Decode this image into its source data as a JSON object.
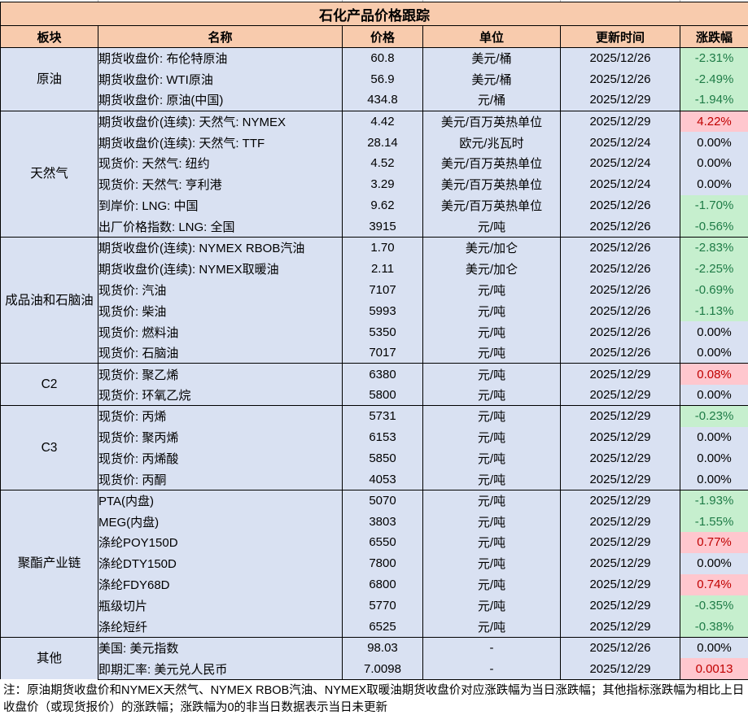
{
  "title": "石化产品价格跟踪",
  "columns": [
    "板块",
    "名称",
    "价格",
    "单位",
    "更新时间",
    "涨跌幅"
  ],
  "colors": {
    "header_bg": "#F8CBAD",
    "body_bg": "#D9E1F2",
    "green_bg": "#C6EFCE",
    "green_text": "#1E7B46",
    "red_bg": "#FFC7CE",
    "red_text": "#C00000"
  },
  "sections": [
    {
      "label": "原油",
      "rows": [
        {
          "name": "期货收盘价: 布伦特原油",
          "price": "60.8",
          "unit": "美元/桶",
          "date": "2025/12/26",
          "change": "-2.31%",
          "change_style": "green"
        },
        {
          "name": "期货收盘价: WTI原油",
          "price": "56.9",
          "unit": "美元/桶",
          "date": "2025/12/26",
          "change": "-2.49%",
          "change_style": "green"
        },
        {
          "name": "期货收盘价: 原油(中国)",
          "price": "434.8",
          "unit": "元/桶",
          "date": "2025/12/29",
          "change": "-1.94%",
          "change_style": "green"
        }
      ]
    },
    {
      "label": "天然气",
      "rows": [
        {
          "name": "期货收盘价(连续): 天然气: NYMEX",
          "price": "4.42",
          "unit": "美元/百万英热单位",
          "date": "2025/12/29",
          "change": "4.22%",
          "change_style": "red"
        },
        {
          "name": "期货收盘价(连续): 天然气: TTF",
          "price": "28.14",
          "unit": "欧元/兆瓦时",
          "date": "2025/12/24",
          "change": "0.00%",
          "change_style": "none"
        },
        {
          "name": "现货价: 天然气: 纽约",
          "price": "4.52",
          "unit": "美元/百万英热单位",
          "date": "2025/12/24",
          "change": "0.00%",
          "change_style": "none"
        },
        {
          "name": "现货价: 天然气: 亨利港",
          "price": "3.29",
          "unit": "美元/百万英热单位",
          "date": "2025/12/24",
          "change": "0.00%",
          "change_style": "none"
        },
        {
          "name": "到岸价: LNG: 中国",
          "price": "9.62",
          "unit": "美元/百万英热单位",
          "date": "2025/12/26",
          "change": "-1.70%",
          "change_style": "green"
        },
        {
          "name": "出厂价格指数: LNG: 全国",
          "price": "3915",
          "unit": "元/吨",
          "date": "2025/12/26",
          "change": "-0.56%",
          "change_style": "green"
        }
      ]
    },
    {
      "label": "成品油和石脑油",
      "rows": [
        {
          "name": "期货收盘价(连续): NYMEX RBOB汽油",
          "price": "1.70",
          "unit": "美元/加仑",
          "date": "2025/12/26",
          "change": "-2.83%",
          "change_style": "green"
        },
        {
          "name": "期货收盘价(连续): NYMEX取暖油",
          "price": "2.11",
          "unit": "美元/加仑",
          "date": "2025/12/26",
          "change": "-2.25%",
          "change_style": "green"
        },
        {
          "name": "现货价: 汽油",
          "price": "7107",
          "unit": "元/吨",
          "date": "2025/12/26",
          "change": "-0.69%",
          "change_style": "green"
        },
        {
          "name": "现货价: 柴油",
          "price": "5993",
          "unit": "元/吨",
          "date": "2025/12/26",
          "change": "-1.13%",
          "change_style": "green"
        },
        {
          "name": "现货价: 燃料油",
          "price": "5350",
          "unit": "元/吨",
          "date": "2025/12/26",
          "change": "0.00%",
          "change_style": "none"
        },
        {
          "name": "现货价: 石脑油",
          "price": "7017",
          "unit": "元/吨",
          "date": "2025/12/26",
          "change": "0.00%",
          "change_style": "none"
        }
      ]
    },
    {
      "label": "C2",
      "rows": [
        {
          "name": "现货价: 聚乙烯",
          "price": "6380",
          "unit": "元/吨",
          "date": "2025/12/29",
          "change": "0.08%",
          "change_style": "red"
        },
        {
          "name": "现货价: 环氧乙烷",
          "price": "5800",
          "unit": "元/吨",
          "date": "2025/12/29",
          "change": "0.00%",
          "change_style": "none"
        }
      ]
    },
    {
      "label": "C3",
      "rows": [
        {
          "name": "现货价: 丙烯",
          "price": "5731",
          "unit": "元/吨",
          "date": "2025/12/29",
          "change": "-0.23%",
          "change_style": "green"
        },
        {
          "name": "现货价: 聚丙烯",
          "price": "6153",
          "unit": "元/吨",
          "date": "2025/12/29",
          "change": "0.00%",
          "change_style": "none"
        },
        {
          "name": "现货价: 丙烯酸",
          "price": "5850",
          "unit": "元/吨",
          "date": "2025/12/29",
          "change": "0.00%",
          "change_style": "none"
        },
        {
          "name": "现货价: 丙酮",
          "price": "4053",
          "unit": "元/吨",
          "date": "2025/12/29",
          "change": "0.00%",
          "change_style": "none"
        }
      ]
    },
    {
      "label": "聚酯产业链",
      "rows": [
        {
          "name": "PTA(内盘)",
          "price": "5070",
          "unit": "元/吨",
          "date": "2025/12/29",
          "change": "-1.93%",
          "change_style": "green"
        },
        {
          "name": "MEG(内盘)",
          "price": "3803",
          "unit": "元/吨",
          "date": "2025/12/29",
          "change": "-1.55%",
          "change_style": "green"
        },
        {
          "name": "涤纶POY150D",
          "price": "6550",
          "unit": "元/吨",
          "date": "2025/12/29",
          "change": "0.77%",
          "change_style": "red"
        },
        {
          "name": "涤纶DTY150D",
          "price": "7800",
          "unit": "元/吨",
          "date": "2025/12/29",
          "change": "0.00%",
          "change_style": "none"
        },
        {
          "name": "涤纶FDY68D",
          "price": "6800",
          "unit": "元/吨",
          "date": "2025/12/29",
          "change": "0.74%",
          "change_style": "red"
        },
        {
          "name": "瓶级切片",
          "price": "5770",
          "unit": "元/吨",
          "date": "2025/12/29",
          "change": "-0.35%",
          "change_style": "green"
        },
        {
          "name": "涤纶短纤",
          "price": "6525",
          "unit": "元/吨",
          "date": "2025/12/29",
          "change": "-0.38%",
          "change_style": "green"
        }
      ]
    },
    {
      "label": "其他",
      "rows": [
        {
          "name": "美国: 美元指数",
          "price": "98.03",
          "unit": "-",
          "date": "2025/12/26",
          "change": "0.00%",
          "change_style": "none"
        },
        {
          "name": "即期汇率: 美元兑人民币",
          "price": "7.0098",
          "unit": "-",
          "date": "2025/12/29",
          "change": "0.0013",
          "change_style": "red"
        }
      ]
    }
  ],
  "footnote": "注：原油期货收盘价和NYMEX天然气、NYMEX RBOB汽油、NYMEX取暖油期货收盘价对应涨跌幅为当日涨跌幅；其他指标涨跌幅为相比上日收盘价（或现货报价）的涨跌幅；涨跌幅为0的非当日数据表示当日未更新"
}
